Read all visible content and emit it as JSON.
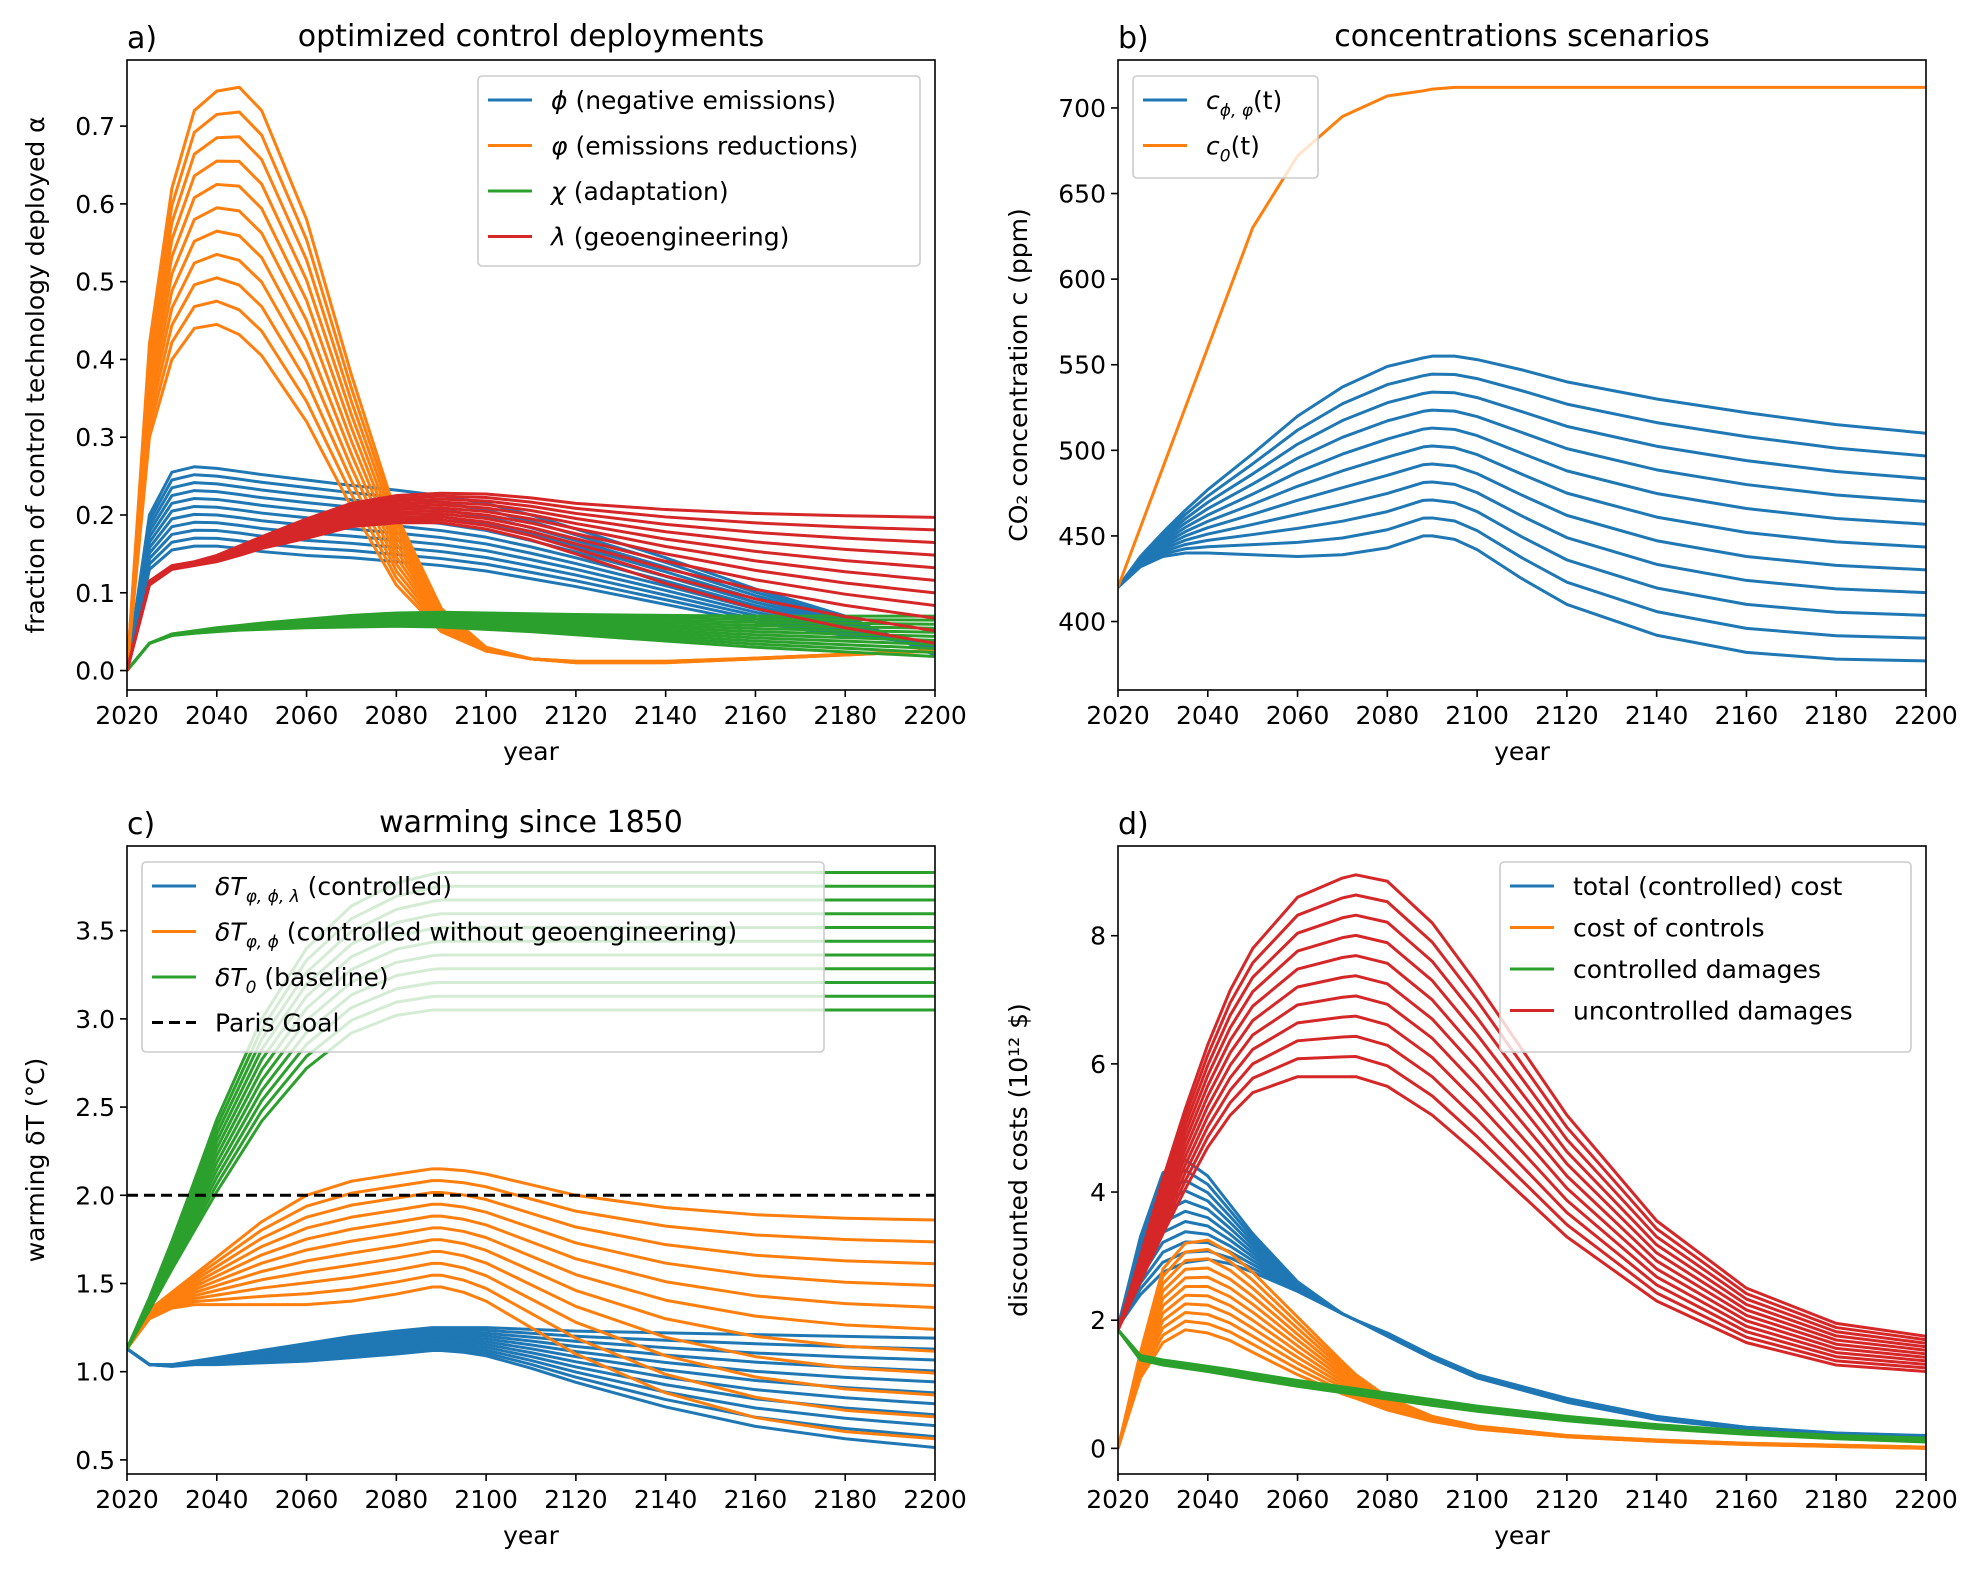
{
  "colors": {
    "blue": "#1f77b4",
    "orange": "#ff7f0e",
    "green": "#2ca02c",
    "red": "#d62728",
    "black": "#000000"
  },
  "chart_data": [
    {
      "panel": "a)",
      "type": "line",
      "title": "optimized control deployments",
      "xlabel": "year",
      "ylabel": "fraction of control technology deployed α",
      "xlim": [
        2020,
        2200
      ],
      "ylim": [
        -0.025,
        0.785
      ],
      "xticks": [
        2020,
        2040,
        2060,
        2080,
        2100,
        2120,
        2140,
        2160,
        2180,
        2200
      ],
      "yticks": [
        0.0,
        0.1,
        0.2,
        0.3,
        0.4,
        0.5,
        0.6,
        0.7
      ],
      "ytick_labels": [
        "0.0",
        "0.1",
        "0.2",
        "0.3",
        "0.4",
        "0.5",
        "0.6",
        "0.7"
      ],
      "legend_loc": "upper right",
      "x": [
        2020,
        2025,
        2030,
        2035,
        2040,
        2045,
        2050,
        2060,
        2070,
        2080,
        2090,
        2100,
        2110,
        2120,
        2140,
        2160,
        2180,
        2200
      ],
      "series": [
        {
          "name": "ϕ (negative emissions)",
          "color": "blue",
          "count": 11,
          "first": [
            0.0,
            0.13,
            0.155,
            0.16,
            0.16,
            0.157,
            0.153,
            0.148,
            0.145,
            0.14,
            0.135,
            0.128,
            0.118,
            0.108,
            0.085,
            0.062,
            0.045,
            0.035
          ],
          "last": [
            0.0,
            0.2,
            0.255,
            0.262,
            0.26,
            0.256,
            0.252,
            0.245,
            0.238,
            0.232,
            0.225,
            0.215,
            0.2,
            0.182,
            0.145,
            0.105,
            0.07,
            0.02
          ]
        },
        {
          "name": "φ (emissions reductions)",
          "color": "orange",
          "count": 11,
          "first": [
            0.0,
            0.3,
            0.4,
            0.44,
            0.445,
            0.432,
            0.405,
            0.32,
            0.21,
            0.11,
            0.05,
            0.025,
            0.015,
            0.012,
            0.012,
            0.016,
            0.021,
            0.026
          ],
          "last": [
            0.0,
            0.42,
            0.62,
            0.72,
            0.745,
            0.75,
            0.72,
            0.58,
            0.38,
            0.2,
            0.08,
            0.03,
            0.015,
            0.01,
            0.01,
            0.015,
            0.02,
            0.025
          ]
        },
        {
          "name": "χ (adaptation)",
          "color": "green",
          "count": 11,
          "first": [
            0.0,
            0.035,
            0.045,
            0.048,
            0.05,
            0.052,
            0.053,
            0.055,
            0.056,
            0.057,
            0.056,
            0.053,
            0.05,
            0.046,
            0.038,
            0.03,
            0.024,
            0.018
          ],
          "last": [
            0.0,
            0.035,
            0.047,
            0.051,
            0.055,
            0.058,
            0.061,
            0.066,
            0.071,
            0.074,
            0.075,
            0.074,
            0.073,
            0.072,
            0.071,
            0.07,
            0.07,
            0.07
          ]
        },
        {
          "name": "λ (geoengineering)",
          "color": "red",
          "count": 11,
          "first": [
            0.0,
            0.11,
            0.13,
            0.135,
            0.14,
            0.148,
            0.157,
            0.17,
            0.185,
            0.19,
            0.19,
            0.182,
            0.168,
            0.15,
            0.112,
            0.08,
            0.055,
            0.035
          ],
          "last": [
            0.0,
            0.115,
            0.135,
            0.14,
            0.148,
            0.16,
            0.172,
            0.195,
            0.215,
            0.225,
            0.228,
            0.227,
            0.222,
            0.215,
            0.207,
            0.202,
            0.199,
            0.197
          ]
        }
      ]
    },
    {
      "panel": "b)",
      "type": "line",
      "title": "concentrations scenarios",
      "xlabel": "year",
      "ylabel": "CO₂ concentration c (ppm)",
      "xlim": [
        2020,
        2200
      ],
      "ylim": [
        360,
        728
      ],
      "xticks": [
        2020,
        2040,
        2060,
        2080,
        2100,
        2120,
        2140,
        2160,
        2180,
        2200
      ],
      "yticks": [
        400,
        450,
        500,
        550,
        600,
        650,
        700
      ],
      "ytick_labels": [
        "400",
        "450",
        "500",
        "550",
        "600",
        "650",
        "700"
      ],
      "legend_loc": "upper left",
      "x": [
        2020,
        2025,
        2030,
        2035,
        2040,
        2050,
        2060,
        2070,
        2080,
        2088,
        2090,
        2095,
        2100,
        2110,
        2120,
        2140,
        2160,
        2180,
        2200
      ],
      "series": [
        {
          "name": "c_{ϕ,φ}(t)",
          "color": "blue",
          "count": 11,
          "first": [
            420,
            432,
            438,
            440,
            440,
            439,
            438,
            439,
            443,
            450,
            450,
            448,
            442,
            425,
            410,
            392,
            382,
            378,
            377
          ],
          "last": [
            420,
            438,
            452,
            465,
            477,
            498,
            520,
            537,
            549,
            554,
            555,
            555,
            553,
            547,
            540,
            530,
            522,
            515,
            510
          ]
        },
        {
          "name": "c_0(t)",
          "color": "orange",
          "count": 1,
          "first": [
            420,
            455,
            490,
            525,
            560,
            630,
            672,
            695,
            707,
            710,
            711,
            712,
            712,
            712,
            712,
            712,
            712,
            712,
            712
          ],
          "last": [
            420,
            455,
            490,
            525,
            560,
            630,
            672,
            695,
            707,
            710,
            711,
            712,
            712,
            712,
            712,
            712,
            712,
            712,
            712
          ]
        }
      ]
    },
    {
      "panel": "c)",
      "type": "line",
      "title": "warming since 1850",
      "xlabel": "year",
      "ylabel": "warming δT (°C)",
      "xlim": [
        2020,
        2200
      ],
      "ylim": [
        0.42,
        3.98
      ],
      "xticks": [
        2020,
        2040,
        2060,
        2080,
        2100,
        2120,
        2140,
        2160,
        2180,
        2200
      ],
      "yticks": [
        0.5,
        1.0,
        1.5,
        2.0,
        2.5,
        3.0,
        3.5
      ],
      "ytick_labels": [
        "0.5",
        "1.0",
        "1.5",
        "2.0",
        "2.5",
        "3.0",
        "3.5"
      ],
      "legend_loc": "upper left",
      "x": [
        2020,
        2025,
        2030,
        2035,
        2040,
        2050,
        2060,
        2070,
        2080,
        2088,
        2090,
        2095,
        2100,
        2110,
        2120,
        2140,
        2160,
        2180,
        2200
      ],
      "series": [
        {
          "name": "δT_{φ,ϕ,λ} (controlled)",
          "color": "blue",
          "count": 11,
          "first": [
            1.13,
            1.04,
            1.03,
            1.04,
            1.04,
            1.05,
            1.06,
            1.08,
            1.1,
            1.12,
            1.12,
            1.11,
            1.09,
            1.02,
            0.94,
            0.8,
            0.69,
            0.62,
            0.57
          ],
          "last": [
            1.13,
            1.04,
            1.04,
            1.06,
            1.08,
            1.12,
            1.16,
            1.2,
            1.23,
            1.25,
            1.25,
            1.25,
            1.25,
            1.24,
            1.23,
            1.22,
            1.21,
            1.2,
            1.19
          ]
        },
        {
          "name": "δT_{φ,ϕ} (controlled without geoengineering)",
          "color": "orange",
          "count": 11,
          "first": [
            1.13,
            1.3,
            1.36,
            1.38,
            1.38,
            1.38,
            1.38,
            1.4,
            1.44,
            1.48,
            1.48,
            1.45,
            1.4,
            1.25,
            1.1,
            0.88,
            0.74,
            0.66,
            0.62
          ],
          "last": [
            1.13,
            1.35,
            1.45,
            1.55,
            1.65,
            1.85,
            2.0,
            2.08,
            2.12,
            2.15,
            2.15,
            2.14,
            2.12,
            2.06,
            2.0,
            1.93,
            1.89,
            1.87,
            1.86
          ]
        },
        {
          "name": "δT_0 (baseline)",
          "color": "green",
          "count": 11,
          "first": [
            1.13,
            1.35,
            1.58,
            1.8,
            2.02,
            2.42,
            2.72,
            2.92,
            3.02,
            3.05,
            3.05,
            3.05,
            3.05,
            3.05,
            3.05,
            3.05,
            3.05,
            3.05,
            3.05
          ],
          "last": [
            1.13,
            1.42,
            1.74,
            2.08,
            2.43,
            3.0,
            3.4,
            3.64,
            3.77,
            3.82,
            3.83,
            3.83,
            3.83,
            3.83,
            3.83,
            3.83,
            3.83,
            3.83,
            3.83
          ]
        },
        {
          "name": "Paris Goal",
          "color": "black",
          "dashed": true,
          "count": 1,
          "first": [
            2.0,
            2.0
          ],
          "last": [
            2.0,
            2.0
          ],
          "x": [
            2020,
            2200
          ]
        }
      ]
    },
    {
      "panel": "d)",
      "type": "line",
      "title": "",
      "xlabel": "year",
      "ylabel": "discounted costs (10¹² $)",
      "xlim": [
        2020,
        2200
      ],
      "ylim": [
        -0.4,
        9.4
      ],
      "xticks": [
        2020,
        2040,
        2060,
        2080,
        2100,
        2120,
        2140,
        2160,
        2180,
        2200
      ],
      "yticks": [
        0,
        2,
        4,
        6,
        8
      ],
      "ytick_labels": [
        "0",
        "2",
        "4",
        "6",
        "8"
      ],
      "legend_loc": "upper right",
      "x": [
        2020,
        2025,
        2030,
        2035,
        2040,
        2045,
        2050,
        2060,
        2070,
        2073,
        2080,
        2090,
        2100,
        2120,
        2140,
        2160,
        2180,
        2200
      ],
      "series": [
        {
          "name": "total (controlled) cost",
          "color": "blue",
          "count": 11,
          "first": [
            1.9,
            2.4,
            2.75,
            2.9,
            2.95,
            2.88,
            2.75,
            2.45,
            2.1,
            2.0,
            1.75,
            1.4,
            1.1,
            0.72,
            0.45,
            0.3,
            0.2,
            0.15
          ],
          "last": [
            1.9,
            3.3,
            4.3,
            4.5,
            4.25,
            3.8,
            3.35,
            2.6,
            2.1,
            2.0,
            1.8,
            1.45,
            1.15,
            0.78,
            0.5,
            0.33,
            0.24,
            0.2
          ]
        },
        {
          "name": "cost of controls",
          "color": "orange",
          "count": 11,
          "first": [
            0.0,
            1.1,
            1.65,
            1.85,
            1.8,
            1.68,
            1.5,
            1.15,
            0.85,
            0.78,
            0.6,
            0.42,
            0.3,
            0.18,
            0.11,
            0.06,
            0.03,
            0.0
          ],
          "last": [
            0.0,
            1.5,
            2.8,
            3.2,
            3.25,
            3.05,
            2.75,
            2.05,
            1.35,
            1.15,
            0.8,
            0.5,
            0.35,
            0.2,
            0.13,
            0.08,
            0.05,
            0.02
          ]
        },
        {
          "name": "controlled damages",
          "color": "green",
          "count": 11,
          "first": [
            1.85,
            1.38,
            1.3,
            1.25,
            1.2,
            1.14,
            1.08,
            0.97,
            0.87,
            0.84,
            0.77,
            0.67,
            0.58,
            0.43,
            0.31,
            0.22,
            0.15,
            0.1
          ],
          "last": [
            1.85,
            1.45,
            1.38,
            1.33,
            1.28,
            1.23,
            1.17,
            1.06,
            0.96,
            0.93,
            0.86,
            0.76,
            0.66,
            0.5,
            0.37,
            0.27,
            0.2,
            0.16
          ]
        },
        {
          "name": "uncontrolled damages",
          "color": "red",
          "count": 11,
          "first": [
            1.85,
            2.6,
            3.35,
            4.05,
            4.7,
            5.2,
            5.55,
            5.8,
            5.8,
            5.8,
            5.65,
            5.2,
            4.6,
            3.3,
            2.3,
            1.65,
            1.3,
            1.2
          ],
          "last": [
            1.85,
            3.0,
            4.2,
            5.3,
            6.3,
            7.15,
            7.8,
            8.6,
            8.9,
            8.95,
            8.85,
            8.2,
            7.25,
            5.2,
            3.55,
            2.5,
            1.95,
            1.75
          ]
        }
      ]
    }
  ],
  "legends": [
    {
      "items": [
        {
          "color": "blue",
          "prefix": "ϕ",
          "sub": "",
          "rest": " (negative emissions)"
        },
        {
          "color": "orange",
          "prefix": "φ",
          "sub": "",
          "rest": " (emissions reductions)"
        },
        {
          "color": "green",
          "prefix": "χ",
          "sub": "",
          "rest": " (adaptation)"
        },
        {
          "color": "red",
          "prefix": "λ",
          "sub": "",
          "rest": " (geoengineering)"
        }
      ]
    },
    {
      "items": [
        {
          "color": "blue",
          "prefix": "c",
          "sub": "ϕ, φ",
          "rest": "(t)"
        },
        {
          "color": "orange",
          "prefix": "c",
          "sub": "0",
          "rest": "(t)"
        }
      ]
    },
    {
      "items": [
        {
          "color": "blue",
          "prefix": "δT",
          "sub": "φ, ϕ, λ",
          "rest": " (controlled)"
        },
        {
          "color": "orange",
          "prefix": "δT",
          "sub": "φ, ϕ",
          "rest": " (controlled without geoengineering)"
        },
        {
          "color": "green",
          "prefix": "δT",
          "sub": "0",
          "rest": " (baseline)"
        },
        {
          "color": "black",
          "dashed": true,
          "prefix": "",
          "sub": "",
          "rest": "Paris Goal"
        }
      ]
    },
    {
      "items": [
        {
          "color": "blue",
          "prefix": "",
          "sub": "",
          "rest": "total (controlled) cost"
        },
        {
          "color": "orange",
          "prefix": "",
          "sub": "",
          "rest": "cost of controls"
        },
        {
          "color": "green",
          "prefix": "",
          "sub": "",
          "rest": "controlled damages"
        },
        {
          "color": "red",
          "prefix": "",
          "sub": "",
          "rest": "uncontrolled damages"
        }
      ]
    }
  ]
}
